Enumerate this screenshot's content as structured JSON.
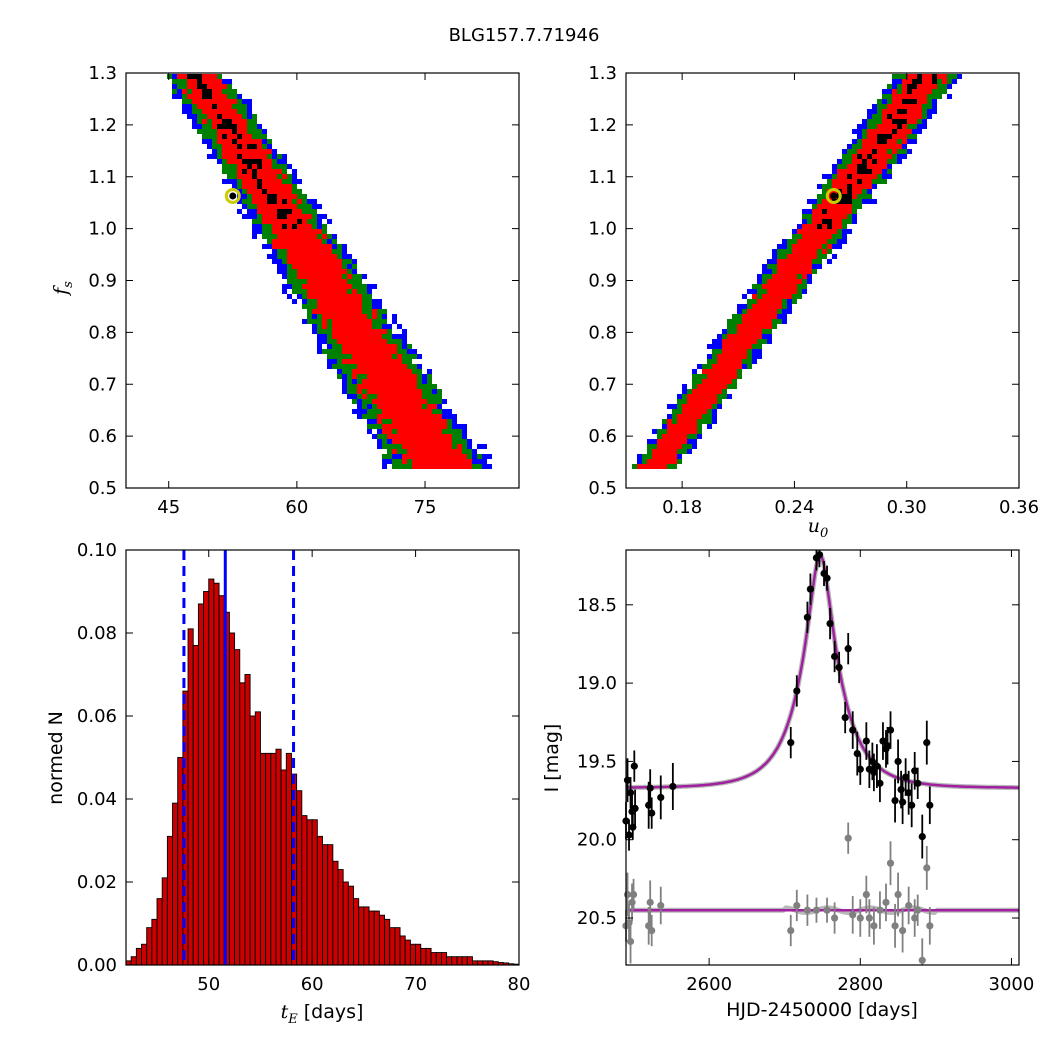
{
  "title": "BLG157.7.71946",
  "colors": {
    "sigma1": "#000000",
    "sigma2": "#ff0000",
    "sigma3": "#008000",
    "sigma4": "#0000ff",
    "bar_fill": "#cc0000",
    "best_fit_marker": "#cccc00",
    "model": "#a020a0",
    "median_line": "#0000ff",
    "residual": "#808080"
  },
  "chart_data": [
    {
      "id": "fs_vs_tE",
      "type": "heatmap",
      "xlim": [
        40,
        86
      ],
      "ylim": [
        0.5,
        1.3
      ],
      "xticks": [
        "45",
        "60",
        "75"
      ],
      "xtick_values": [
        45,
        60,
        75
      ],
      "yticks": [
        "0.5",
        "0.6",
        "0.7",
        "0.8",
        "0.9",
        "1.0",
        "1.1",
        "1.2",
        "1.3"
      ],
      "xlabel": "",
      "ylabel_main": "f",
      "ylabel_sub": "s",
      "best_fit": {
        "x": 52.5,
        "y": 1.063
      },
      "levels": [
        "1 sigma (black)",
        "2 sigma (red)",
        "3 sigma (green)",
        "4 sigma (blue)"
      ]
    },
    {
      "id": "fs_vs_u0",
      "type": "heatmap",
      "xlim": [
        0.15,
        0.36
      ],
      "ylim": [
        0.5,
        1.3
      ],
      "xticks": [
        "0.18",
        "0.24",
        "0.30",
        "0.36"
      ],
      "xtick_values": [
        0.18,
        0.24,
        0.3,
        0.36
      ],
      "yticks": [
        "0.5",
        "0.6",
        "0.7",
        "0.8",
        "0.9",
        "1.0",
        "1.1",
        "1.2",
        "1.3"
      ],
      "xlabel_main": "u",
      "xlabel_sub": "0",
      "ylabel": "",
      "best_fit": {
        "x": 0.261,
        "y": 1.063
      }
    },
    {
      "id": "tE_histogram",
      "type": "bar",
      "xlim": [
        42,
        80
      ],
      "ylim": [
        0,
        0.1
      ],
      "xticks": [
        "50",
        "60",
        "70",
        "80"
      ],
      "xtick_values": [
        50,
        60,
        70,
        80
      ],
      "yticks": [
        "0.00",
        "0.02",
        "0.04",
        "0.06",
        "0.08",
        "0.10"
      ],
      "ytick_values": [
        0,
        0.02,
        0.04,
        0.06,
        0.08,
        0.1
      ],
      "xlabel_main": "t",
      "xlabel_sub": "E",
      "xlabel_unit": " [days]",
      "ylabel": "normed N",
      "bin_width": 0.5,
      "bin_start": 42,
      "values": [
        0.001,
        0.002,
        0.004,
        0.005,
        0.009,
        0.011,
        0.016,
        0.021,
        0.031,
        0.039,
        0.05,
        0.066,
        0.081,
        0.077,
        0.087,
        0.09,
        0.093,
        0.092,
        0.089,
        0.085,
        0.08,
        0.076,
        0.068,
        0.07,
        0.06,
        0.061,
        0.051,
        0.051,
        0.051,
        0.052,
        0.047,
        0.051,
        0.046,
        0.042,
        0.036,
        0.035,
        0.035,
        0.031,
        0.029,
        0.029,
        0.025,
        0.023,
        0.02,
        0.019,
        0.016,
        0.014,
        0.014,
        0.013,
        0.013,
        0.012,
        0.011,
        0.009,
        0.009,
        0.007,
        0.006,
        0.005,
        0.005,
        0.004,
        0.004,
        0.003,
        0.003,
        0.003,
        0.002,
        0.002,
        0.002,
        0.002,
        0.002,
        0.001,
        0.001,
        0.001,
        0.001,
        0.0008,
        0.0006,
        0.0005,
        0.0003,
        0.0002
      ],
      "median": 51.6,
      "lower": 47.6,
      "upper": 58.2
    },
    {
      "id": "lightcurve",
      "type": "scatter",
      "xlim": [
        2490,
        3010
      ],
      "ylim": [
        20.8,
        18.15
      ],
      "y_inverted": true,
      "xticks": [
        "2600",
        "2800",
        "3000"
      ],
      "xtick_values": [
        2600,
        2800,
        3000
      ],
      "yticks": [
        "18.5",
        "19.0",
        "19.5",
        "20.0",
        "20.5"
      ],
      "ytick_values": [
        18.5,
        19.0,
        19.5,
        20.0,
        20.5
      ],
      "xlabel": "HJD-2450000 [days]",
      "ylabel": "I [mag]",
      "model": {
        "t0": 2747,
        "tE": 52,
        "u0": 0.261,
        "baseline": 19.67
      },
      "residual_offset": 20.45,
      "points": [
        [
          2490,
          19.88,
          0.12
        ],
        [
          2492,
          19.62,
          0.14
        ],
        [
          2494,
          19.97,
          0.1
        ],
        [
          2496,
          19.7,
          0.1
        ],
        [
          2498,
          19.82,
          0.12
        ],
        [
          2499,
          19.92,
          0.08
        ],
        [
          2501,
          19.53,
          0.1
        ],
        [
          2502,
          19.8,
          0.12
        ],
        [
          2520,
          19.78,
          0.15
        ],
        [
          2522,
          19.67,
          0.12
        ],
        [
          2524,
          19.83,
          0.1
        ],
        [
          2536,
          19.73,
          0.14
        ],
        [
          2552,
          19.66,
          0.15
        ],
        [
          2708,
          19.38,
          0.1
        ],
        [
          2716,
          19.05,
          0.1
        ],
        [
          2730,
          18.58,
          0.1
        ],
        [
          2734,
          18.4,
          0.1
        ],
        [
          2742,
          18.2,
          0.08
        ],
        [
          2746,
          18.18,
          0.08
        ],
        [
          2752,
          18.3,
          0.08
        ],
        [
          2756,
          18.33,
          0.08
        ],
        [
          2760,
          18.62,
          0.1
        ],
        [
          2766,
          18.83,
          0.1
        ],
        [
          2772,
          18.9,
          0.1
        ],
        [
          2780,
          19.22,
          0.1
        ],
        [
          2784,
          18.78,
          0.1
        ],
        [
          2790,
          19.3,
          0.12
        ],
        [
          2796,
          19.45,
          0.14
        ],
        [
          2800,
          19.55,
          0.1
        ],
        [
          2808,
          19.37,
          0.12
        ],
        [
          2812,
          19.55,
          0.12
        ],
        [
          2816,
          19.5,
          0.12
        ],
        [
          2818,
          19.57,
          0.12
        ],
        [
          2822,
          19.53,
          0.14
        ],
        [
          2826,
          19.64,
          0.12
        ],
        [
          2830,
          19.37,
          0.12
        ],
        [
          2834,
          19.42,
          0.12
        ],
        [
          2836,
          19.4,
          0.12
        ],
        [
          2840,
          19.3,
          0.12
        ],
        [
          2846,
          19.75,
          0.14
        ],
        [
          2850,
          19.5,
          0.14
        ],
        [
          2854,
          19.68,
          0.12
        ],
        [
          2856,
          19.76,
          0.14
        ],
        [
          2860,
          19.6,
          0.12
        ],
        [
          2864,
          19.7,
          0.14
        ],
        [
          2868,
          19.78,
          0.14
        ],
        [
          2872,
          19.56,
          0.12
        ],
        [
          2876,
          19.64,
          0.1
        ],
        [
          2882,
          19.98,
          0.14
        ],
        [
          2888,
          19.38,
          0.14
        ],
        [
          2892,
          19.78,
          0.12
        ]
      ],
      "residual_points": [
        [
          2490,
          20.55,
          0.1
        ],
        [
          2492,
          20.35,
          0.14
        ],
        [
          2494,
          20.53,
          0.12
        ],
        [
          2496,
          20.65,
          0.14
        ],
        [
          2498,
          20.4,
          0.12
        ],
        [
          2500,
          20.35,
          0.1
        ],
        [
          2520,
          20.55,
          0.12
        ],
        [
          2522,
          20.4,
          0.14
        ],
        [
          2524,
          20.58,
          0.1
        ],
        [
          2536,
          20.42,
          0.12
        ],
        [
          2708,
          20.58,
          0.1
        ],
        [
          2716,
          20.42,
          0.1
        ],
        [
          2730,
          20.45,
          0.1
        ],
        [
          2742,
          20.45,
          0.08
        ],
        [
          2756,
          20.45,
          0.08
        ],
        [
          2766,
          20.5,
          0.1
        ],
        [
          2784,
          19.99,
          0.1
        ],
        [
          2790,
          20.48,
          0.12
        ],
        [
          2800,
          20.5,
          0.12
        ],
        [
          2808,
          20.35,
          0.12
        ],
        [
          2812,
          20.5,
          0.12
        ],
        [
          2818,
          20.55,
          0.12
        ],
        [
          2826,
          20.45,
          0.12
        ],
        [
          2834,
          20.4,
          0.12
        ],
        [
          2840,
          20.15,
          0.14
        ],
        [
          2846,
          20.55,
          0.14
        ],
        [
          2850,
          20.35,
          0.14
        ],
        [
          2856,
          20.58,
          0.14
        ],
        [
          2864,
          20.42,
          0.12
        ],
        [
          2872,
          20.5,
          0.12
        ],
        [
          2876,
          20.45,
          0.1
        ],
        [
          2882,
          20.77,
          0.14
        ],
        [
          2888,
          20.18,
          0.14
        ],
        [
          2892,
          20.55,
          0.12
        ]
      ]
    }
  ]
}
